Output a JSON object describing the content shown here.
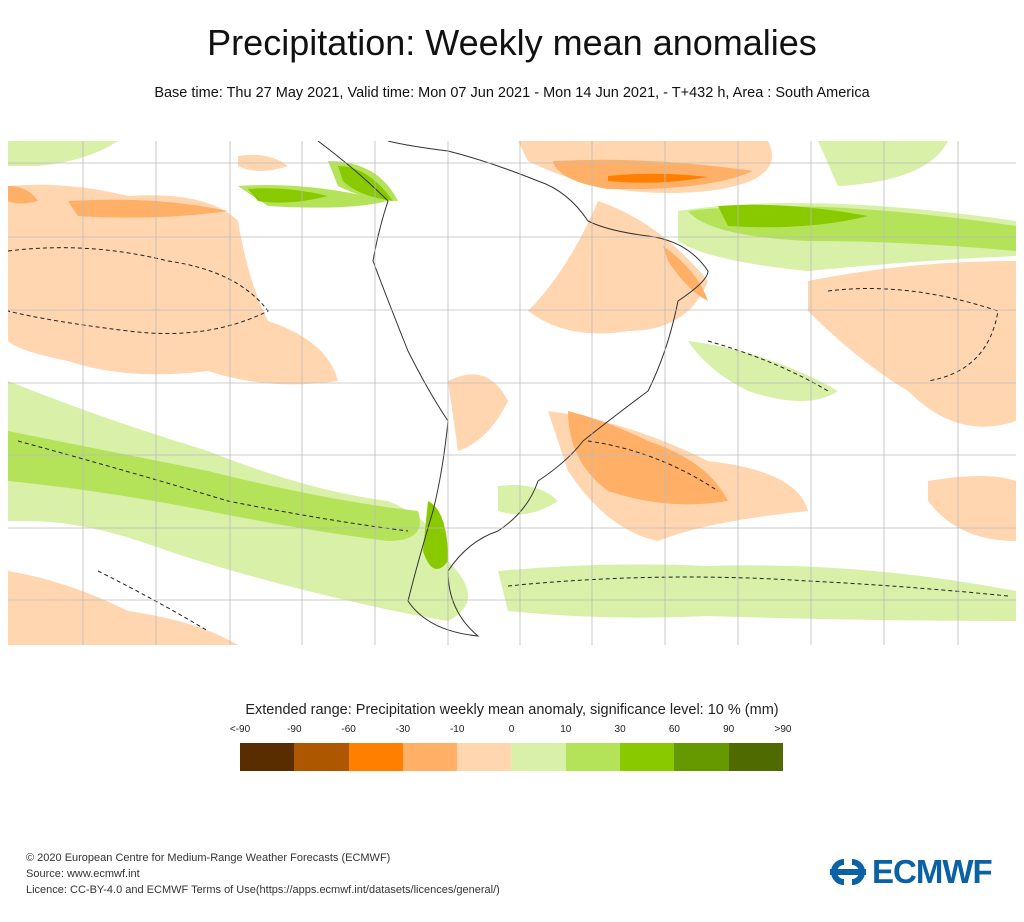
{
  "header": {
    "title": "Precipitation: Weekly mean anomalies",
    "subtitle": "Base time: Thu 27 May 2021, Valid time: Mon 07 Jun 2021 - Mon 14 Jun 2021, - T+432 h, Area : South America"
  },
  "legend": {
    "title": "Extended range: Precipitation weekly mean anomaly, significance level: 10 % (mm)",
    "labels": [
      "<-90",
      "-90",
      "-60",
      "-30",
      "-10",
      "0",
      "10",
      "30",
      "60",
      "90",
      ">90"
    ],
    "colors": [
      "#5a2d00",
      "#ad5700",
      "#ff8000",
      "#ffb066",
      "#ffd6b0",
      "#d8f0a8",
      "#b4e35a",
      "#88c900",
      "#669900",
      "#4f6b00"
    ]
  },
  "footer": {
    "line1": "© 2020 European Centre for Medium-Range Weather Forecasts (ECMWF)",
    "line2": "Source: www.ecmwf.int",
    "line3": "Licence: CC-BY-4.0 and ECMWF Terms of Use(https://apps.ecmwf.int/datasets/licences/general/)"
  },
  "logo": {
    "text": "ECMWF",
    "color": "#0a62a5"
  }
}
